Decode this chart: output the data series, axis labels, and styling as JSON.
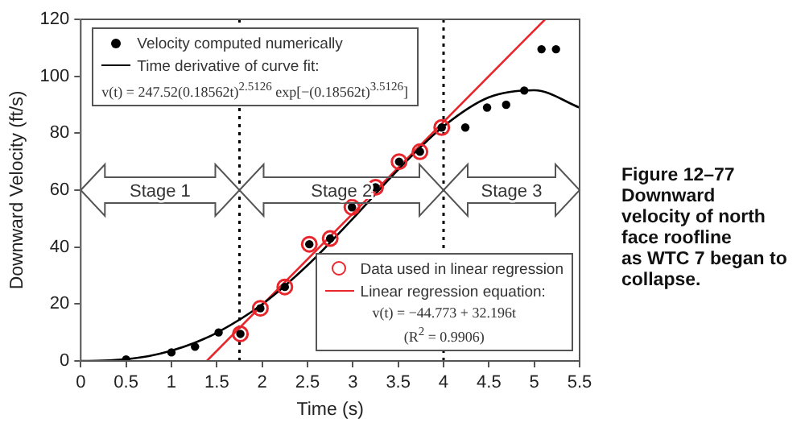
{
  "chart_data": {
    "type": "scatter",
    "xlabel": "Time (s)",
    "ylabel": "Downward Velocity (ft/s)",
    "xlim": [
      0,
      5.5
    ],
    "xticks": [
      0,
      0.5,
      1,
      1.5,
      2,
      2.5,
      3,
      3.5,
      4,
      4.5,
      5,
      5.5
    ],
    "ylim": [
      0,
      120
    ],
    "yticks": [
      0,
      20,
      40,
      60,
      80,
      100,
      120
    ],
    "grid": false,
    "legend": "top left",
    "series": [
      {
        "name": "Velocity computed numerically",
        "marker": "circle",
        "color": "#000000",
        "x": [
          0.5,
          1.0,
          1.26,
          1.52,
          1.76,
          1.98,
          2.25,
          2.52,
          2.75,
          2.99,
          3.25,
          3.51,
          3.74,
          3.98,
          4.24,
          4.48,
          4.69,
          4.89,
          5.08,
          5.24
        ],
        "values": [
          0.5,
          3,
          5,
          10,
          9.5,
          18.5,
          26,
          41,
          43,
          54,
          61,
          70,
          73.5,
          82,
          82,
          89,
          90,
          95,
          109.5,
          109.5
        ]
      },
      {
        "name": "Time derivative of curve fit:",
        "type": "line",
        "marker": "none",
        "line_style": "solid",
        "color": "#000000",
        "x": [
          0,
          0.25,
          0.5,
          0.75,
          1,
          1.25,
          1.5,
          2,
          2.5,
          3,
          3.5,
          4,
          4.5,
          5,
          5.5
        ],
        "values": [
          0,
          0.1,
          0.6,
          1.7,
          3.6,
          6.3,
          9.9,
          19.9,
          33.6,
          50,
          67.2,
          82.4,
          92.6,
          95.1,
          89
        ]
      },
      {
        "name": "Data used in linear regression",
        "marker": "circle",
        "color": "#e8262b",
        "x": [
          1.76,
          1.98,
          2.25,
          2.52,
          2.75,
          2.99,
          3.25,
          3.51,
          3.74,
          3.98
        ],
        "values": [
          9.5,
          18.5,
          26,
          41,
          43,
          54,
          61,
          70,
          73.5,
          82
        ]
      },
      {
        "name": "Linear regression equation:",
        "type": "line",
        "marker": "none",
        "line_style": "solid",
        "color": "#e8262b",
        "x": [
          1.39,
          5.12
        ],
        "values": [
          0,
          120
        ]
      }
    ],
    "ref_lines": [
      {
        "axis": "x",
        "value": 1.75,
        "line_style": "dotted",
        "color": "#000000"
      },
      {
        "axis": "x",
        "value": 4,
        "line_style": "dotted",
        "color": "#000000"
      }
    ],
    "annotations": [
      "Stage 1",
      "Stage 2",
      "Stage 3",
      "v(t) = 247.52(0.18562t)$^{2.5126}$ exp[−(0.18562t)$^{3.5126}$]",
      "v(t) = −44.773 + 32.196t",
      "(R$^{2}$ = 0.9906)",
      "Figure 12–77\nDownward\nvelocity of north\nface roofline\nas WTC 7 began to\ncollapse."
    ]
  }
}
